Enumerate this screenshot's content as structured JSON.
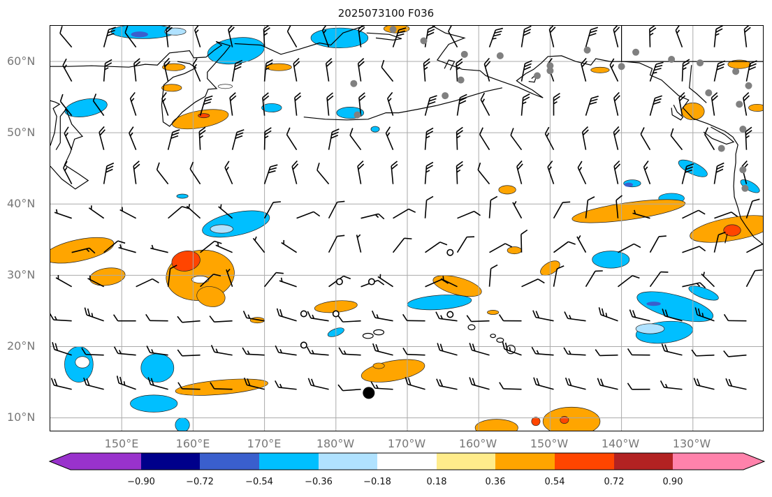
{
  "title": "2025073100 F036",
  "lat_labels": [
    "60°N",
    "50°N",
    "40°N",
    "30°N",
    "20°N",
    "10°N"
  ],
  "lon_labels": [
    "150°E",
    "160°E",
    "170°E",
    "180°W",
    "170°W",
    "160°W",
    "150°W",
    "140°W",
    "130°W"
  ],
  "colorbar": {
    "colors": [
      "#9932cc",
      "#00008b",
      "#3a5fcd",
      "#00bfff",
      "#b0e2ff",
      "#ffffff",
      "#ffec8b",
      "#ffa500",
      "#ff4500",
      "#b22222",
      "#ff82ab"
    ],
    "tick_labels": [
      "−0.90",
      "−0.72",
      "−0.54",
      "−0.36",
      "−0.18",
      "0.18",
      "0.36",
      "0.54",
      "0.72",
      "0.90"
    ]
  },
  "map": {
    "projection": "plate-carree",
    "lon_range": [
      140,
      240
    ],
    "lat_range": [
      8,
      65
    ],
    "gridlines": true,
    "coastlines": true,
    "wind_barbs": true
  }
}
